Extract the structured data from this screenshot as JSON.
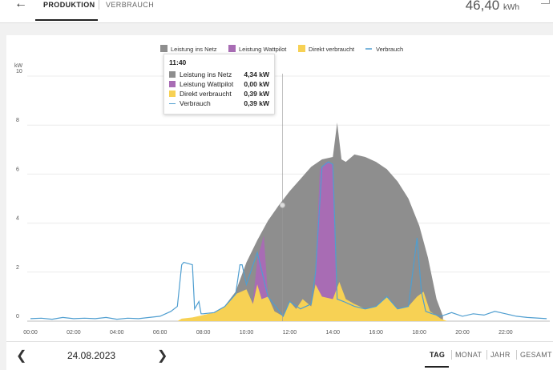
{
  "header": {
    "back_icon": "arrow-left-icon",
    "tab_production": "PRODUKTION",
    "tab_consumption": "VERBRAUCH",
    "energy_value": "46,40",
    "energy_unit": "kWh",
    "fullscreen_icon": "fullscreen-icon"
  },
  "legend": [
    "Leistung ins Netz",
    "Leistung Wattpilot",
    "Direkt verbraucht",
    "Verbrauch"
  ],
  "colors": {
    "netz": "#8e8e8e",
    "wattpilot": "#a86cb4",
    "direkt": "#f7d154",
    "verbrauch": "#4f9ed0"
  },
  "tooltip": {
    "time": "11:40",
    "rows": [
      {
        "label": "Leistung ins Netz",
        "value": "4,34 kW"
      },
      {
        "label": "Leistung Wattpilot",
        "value": "0,00 kW"
      },
      {
        "label": "Direkt verbraucht",
        "value": "0,39 kW"
      },
      {
        "label": "Verbrauch",
        "value": "0,39 kW"
      }
    ]
  },
  "chart_data": {
    "type": "area",
    "ylabel": "kW",
    "ylim": [
      0,
      10
    ],
    "yticks": [
      "0",
      "2",
      "4",
      "6",
      "8",
      "10"
    ],
    "xticks": [
      "00:00",
      "02:00",
      "04:00",
      "06:00",
      "08:00",
      "10:00",
      "12:00",
      "14:00",
      "16:00",
      "18:00",
      "20:00",
      "22:00"
    ],
    "x_range_hours": [
      0,
      23.9
    ],
    "grid": true,
    "legend_position": "top-center",
    "series": [
      {
        "name": "Direkt verbraucht",
        "type": "area",
        "x": [
          6.8,
          7.0,
          7.5,
          8.0,
          8.5,
          9.0,
          9.5,
          10.0,
          10.3,
          10.5,
          10.7,
          11.0,
          11.3,
          11.7,
          12.0,
          12.3,
          12.6,
          13.0,
          13.2,
          13.5,
          14.0,
          14.3,
          14.6,
          15.0,
          15.5,
          16.0,
          16.5,
          17.0,
          17.5,
          17.9,
          18.2,
          18.5,
          19.0,
          19.3
        ],
        "values": [
          0.0,
          0.1,
          0.15,
          0.25,
          0.35,
          0.6,
          1.1,
          1.3,
          0.7,
          1.5,
          0.9,
          1.0,
          0.4,
          0.2,
          0.8,
          0.5,
          0.9,
          0.6,
          1.5,
          1.0,
          0.9,
          1.6,
          0.9,
          0.7,
          0.5,
          0.6,
          1.0,
          0.5,
          0.6,
          1.0,
          1.2,
          0.4,
          0.1,
          0.0
        ]
      },
      {
        "name": "Leistung Wattpilot",
        "type": "area",
        "x": [
          10.2,
          10.5,
          10.8,
          11.0,
          11.3,
          13.1,
          13.4,
          13.7,
          14.0,
          14.2
        ],
        "values": [
          0.0,
          2.5,
          3.5,
          1.0,
          0.0,
          0.0,
          6.2,
          6.5,
          6.4,
          0.0
        ]
      },
      {
        "name": "Leistung ins Netz",
        "type": "area",
        "x": [
          8.8,
          9.5,
          10.0,
          10.5,
          11.0,
          11.5,
          12.0,
          12.5,
          13.0,
          13.5,
          14.0,
          14.2,
          14.4,
          14.6,
          15.0,
          15.5,
          16.0,
          16.5,
          17.0,
          17.5,
          18.0,
          18.4,
          18.8,
          19.1
        ],
        "values": [
          0.4,
          1.2,
          2.4,
          3.3,
          4.1,
          4.73,
          5.3,
          5.8,
          6.3,
          6.6,
          6.7,
          8.1,
          6.6,
          6.5,
          6.8,
          6.7,
          6.5,
          6.2,
          5.7,
          5.0,
          3.9,
          2.6,
          0.9,
          0.2
        ]
      },
      {
        "name": "Verbrauch",
        "type": "line",
        "x": [
          0.0,
          0.5,
          1.0,
          1.5,
          2.0,
          2.5,
          3.0,
          3.5,
          4.0,
          4.5,
          5.0,
          5.5,
          6.0,
          6.5,
          6.8,
          7.0,
          7.1,
          7.5,
          7.6,
          7.8,
          7.9,
          8.0,
          8.5,
          9.0,
          9.5,
          9.7,
          9.8,
          10.0,
          10.5,
          11.0,
          11.7,
          12.0,
          12.5,
          13.0,
          13.2,
          13.5,
          13.8,
          14.0,
          14.2,
          14.5,
          15.0,
          15.5,
          16.0,
          16.5,
          17.0,
          17.5,
          17.9,
          18.1,
          18.3,
          18.6,
          19.0,
          19.5,
          20.0,
          20.5,
          21.0,
          21.5,
          22.0,
          22.5,
          23.0,
          23.9
        ],
        "values": [
          0.1,
          0.12,
          0.08,
          0.15,
          0.1,
          0.12,
          0.1,
          0.15,
          0.08,
          0.12,
          0.1,
          0.15,
          0.2,
          0.4,
          0.6,
          2.3,
          2.4,
          2.3,
          0.5,
          0.8,
          0.3,
          0.3,
          0.35,
          0.6,
          1.1,
          2.3,
          2.3,
          1.5,
          2.8,
          1.0,
          0.2,
          0.8,
          0.5,
          0.7,
          2.0,
          6.3,
          6.5,
          6.4,
          0.9,
          0.8,
          0.6,
          0.5,
          0.6,
          1.0,
          0.5,
          0.6,
          3.4,
          1.2,
          0.4,
          0.3,
          0.2,
          0.35,
          0.2,
          0.3,
          0.25,
          0.4,
          0.3,
          0.2,
          0.15,
          0.1
        ]
      }
    ]
  },
  "footer": {
    "prev_icon": "chevron-left-icon",
    "date": "24.08.2023",
    "next_icon": "chevron-right-icon",
    "periods": [
      "TAG",
      "MONAT",
      "JAHR",
      "GESAMT"
    ]
  }
}
